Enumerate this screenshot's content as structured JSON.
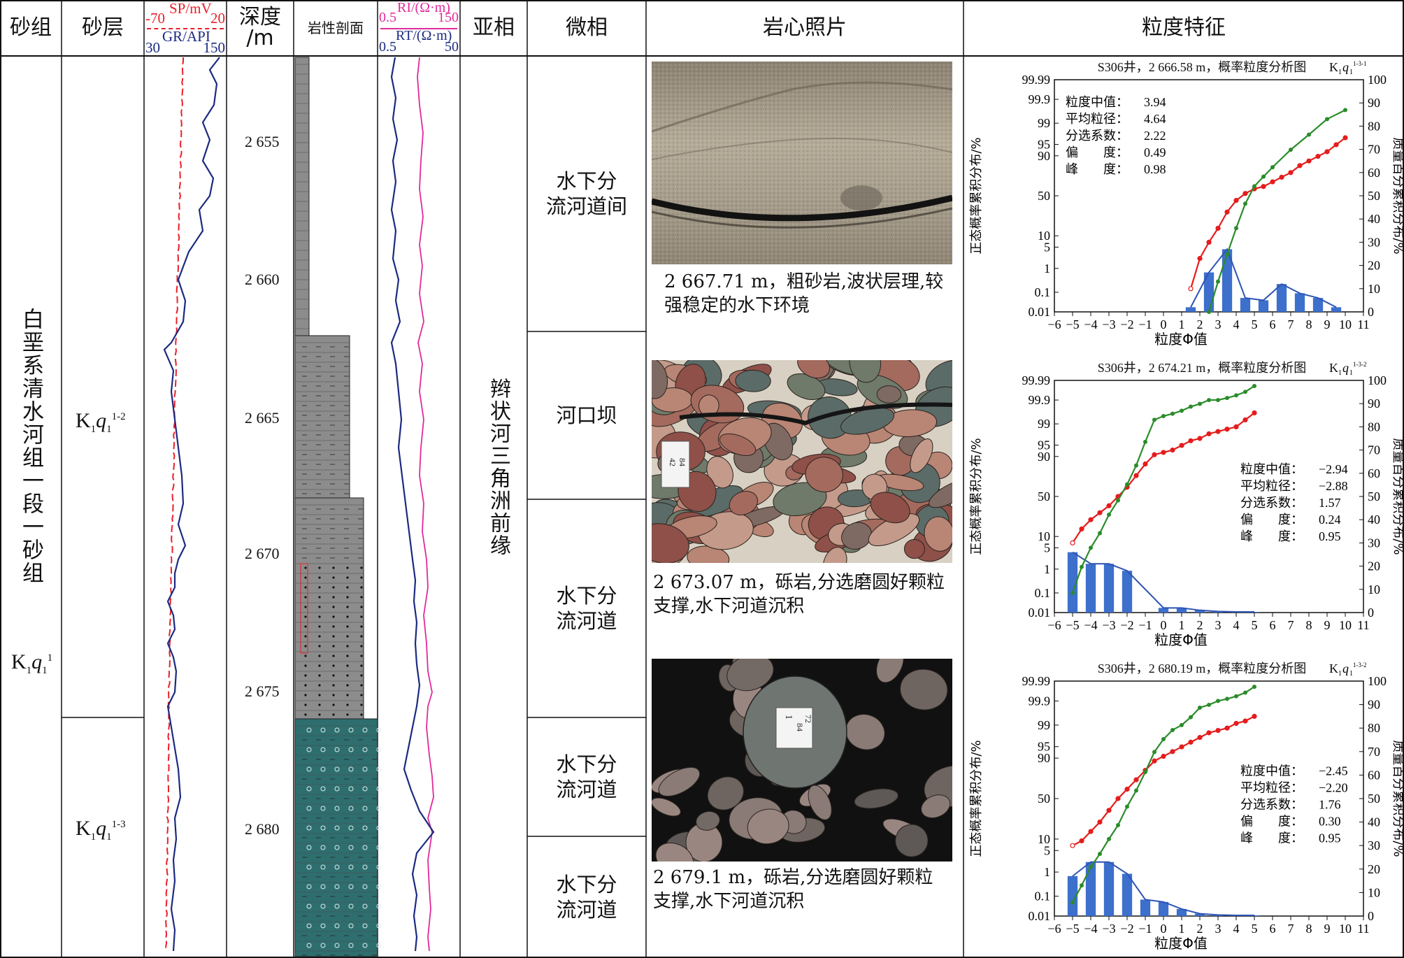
{
  "headers": {
    "sand_group": "砂组",
    "sand_layer": "砂层",
    "sp": "SP/mV",
    "sp_min": "-70",
    "sp_max": "20",
    "gr": "GR/API",
    "gr_min": "30",
    "gr_max": "150",
    "depth_line1": "深度",
    "depth_line2": "/m",
    "lith": "岩性剖面",
    "ri": "RI/(Ω·m)",
    "ri_min": "0.5",
    "ri_max": "150",
    "rt": "RT/(Ω·m)",
    "rt_min": "0.5",
    "rt_max": "50",
    "subfacies": "亚相",
    "microfacies": "微相",
    "core": "岩心照片",
    "grain": "粒度特征"
  },
  "colors": {
    "sp": "#e8202a",
    "gr": "#1c2a80",
    "ri": "#e02a9a",
    "rt": "#1c2a80",
    "green_cum": "#2a8c2a",
    "red_cum": "#e51c1c",
    "bars": "#3d6fcc",
    "lith_gray": "#8c8c8c",
    "lith_teal": "#2e6e6e"
  },
  "sand_group_text": "白垩系清水河组一段一砂组",
  "sand_group_code": {
    "base": "K",
    "sub1": "1",
    "ital": "q",
    "sub2": "1",
    "sup": "1"
  },
  "sand_layers": [
    {
      "base": "K",
      "sub1": "1",
      "ital": "q",
      "sub2": "1",
      "sup": "1-2"
    },
    {
      "base": "K",
      "sub1": "1",
      "ital": "q",
      "sub2": "1",
      "sup": "1-3"
    }
  ],
  "depth_labels": [
    "2 655",
    "2 660",
    "2 665",
    "2 670",
    "2 675",
    "2 680"
  ],
  "subfacies_text": "辫状河三角洲前缘",
  "microfacies": [
    "水下分\n流河道间",
    "河口坝",
    "水下分\n流河道",
    "水下分\n流河道",
    "水下分\n流河道"
  ],
  "core_captions": [
    "2 667.71 m，粗砂岩,波状层理,较强稳定的水下环境",
    "2 673.07 m，砾岩,分选磨圆好颗粒支撑,水下河道沉积",
    "2 679.1 m，砾岩,分选磨圆好颗粒支撑,水下河道沉积"
  ],
  "photo_labels": [
    "42",
    "84",
    "72",
    "84",
    "1"
  ],
  "chart_data": [
    {
      "type": "line",
      "title": "S306井，2 666.58 m，概率粒度分析图",
      "title_suffix": {
        "base": "K",
        "sub1": "1",
        "ital": "q",
        "sub2": "1",
        "sup": "1-3-1"
      },
      "xlabel": "粒度Φ值",
      "ylabel_left": "正态概率累积分布/%",
      "ylabel_right": "质量百分累积分布/%",
      "x_ticks": [
        -6,
        -5,
        -4,
        -3,
        -2,
        -1,
        0,
        1,
        2,
        3,
        4,
        5,
        6,
        7,
        8,
        9,
        10,
        11
      ],
      "y_left_ticks": [
        "99.99",
        "99.9",
        "99",
        "95",
        "90",
        "50",
        "10",
        "5",
        "1",
        "0.1",
        "0.01"
      ],
      "y_left_values": [
        99.99,
        99.9,
        99,
        95,
        90,
        50,
        10,
        5,
        1,
        0.1,
        0.01
      ],
      "y_right_ticks": [
        0,
        10,
        20,
        30,
        40,
        50,
        60,
        70,
        80,
        90,
        100
      ],
      "stats": [
        [
          "粒度中值：",
          "3.94"
        ],
        [
          "平均粒径：",
          "4.64"
        ],
        [
          "分选系数：",
          "2.22"
        ],
        [
          "偏　　度：",
          "0.49"
        ],
        [
          "峰　　度：",
          "0.98"
        ]
      ],
      "stats_pos": "top-left",
      "green_prob_x": [
        2.5,
        3,
        3.5,
        4,
        4.5,
        5,
        5.5,
        6,
        7,
        8,
        9,
        10
      ],
      "green_prob_y": [
        0.01,
        0.3,
        3,
        15,
        40,
        62,
        73,
        82,
        93,
        97.5,
        99.3,
        99.7
      ],
      "red_cum_x": [
        1.5,
        2,
        2.5,
        3,
        3.5,
        4,
        4.5,
        5,
        5.5,
        6,
        6.5,
        7,
        7.5,
        8,
        8.5,
        9,
        9.5,
        10
      ],
      "red_cum_y": [
        10,
        23,
        30,
        36,
        43,
        48,
        51,
        53,
        54,
        56,
        58,
        60,
        63,
        65,
        67,
        69,
        72,
        75
      ],
      "bars_x": [
        1.5,
        2.5,
        3.5,
        4.5,
        5.5,
        6.5,
        7.5,
        8.5,
        9.5
      ],
      "bars_y": [
        2,
        17,
        27,
        6,
        5,
        12,
        8,
        6,
        2
      ],
      "series": [
        {
          "name": "正态概率累积分布"
        },
        {
          "name": "质量百分累积分布"
        }
      ]
    },
    {
      "type": "line",
      "title": "S306井，2 674.21 m，概率粒度分析图",
      "title_suffix": {
        "base": "K",
        "sub1": "1",
        "ital": "q",
        "sub2": "1",
        "sup": "1-3-2"
      },
      "xlabel": "粒度Φ值",
      "ylabel_left": "正态概率累积分布/%",
      "ylabel_right": "质量百分累积分布/%",
      "x_ticks": [
        -6,
        -5,
        -4,
        -3,
        -2,
        -1,
        0,
        1,
        2,
        3,
        4,
        5,
        6,
        7,
        8,
        9,
        10,
        11
      ],
      "y_left_ticks": [
        "99.99",
        "99.9",
        "99",
        "95",
        "90",
        "50",
        "10",
        "5",
        "1",
        "0.1",
        "0.01"
      ],
      "y_left_values": [
        99.99,
        99.9,
        99,
        95,
        90,
        50,
        10,
        5,
        1,
        0.1,
        0.01
      ],
      "y_right_ticks": [
        0,
        10,
        20,
        30,
        40,
        50,
        60,
        70,
        80,
        90,
        100
      ],
      "stats": [
        [
          "粒度中值：",
          "−2.94"
        ],
        [
          "平均粒径：",
          "−2.88"
        ],
        [
          "分选系数：",
          "1.57"
        ],
        [
          "偏　　度：",
          "0.24"
        ],
        [
          "峰　　度：",
          "0.95"
        ]
      ],
      "stats_pos": "right",
      "green_prob_x": [
        -5,
        -4.5,
        -4,
        -3.5,
        -3,
        -2.5,
        -2,
        -1.5,
        -1,
        -0.5,
        0,
        0.5,
        1,
        1.5,
        2,
        2.5,
        3,
        3.5,
        4,
        4.5,
        5
      ],
      "green_prob_y": [
        0.1,
        1.2,
        5,
        12,
        28,
        45,
        65,
        84,
        96,
        99.3,
        99.5,
        99.6,
        99.7,
        99.8,
        99.85,
        99.9,
        99.9,
        99.92,
        99.94,
        99.96,
        99.98
      ],
      "red_cum_x": [
        -5,
        -4.5,
        -4,
        -3.5,
        -3,
        -2.5,
        -2,
        -1.5,
        -1,
        -0.5,
        0,
        0.5,
        1,
        1.5,
        2,
        2.5,
        3,
        3.5,
        4,
        4.5,
        5
      ],
      "red_cum_y": [
        30,
        36,
        40,
        43,
        46,
        50,
        54,
        59,
        64,
        68,
        69,
        70,
        72,
        74,
        75,
        77,
        78,
        79,
        80,
        83,
        86
      ],
      "bars_x": [
        -5,
        -4,
        -3,
        -2,
        0,
        1,
        2,
        3,
        4,
        5
      ],
      "bars_y": [
        26,
        21,
        21,
        18,
        2,
        2,
        1,
        0.5,
        0.3,
        0.3
      ],
      "series": [
        {
          "name": "正态概率累积分布"
        },
        {
          "name": "质量百分累积分布"
        }
      ]
    },
    {
      "type": "line",
      "title": "S306井，2 680.19 m，概率粒度分析图",
      "title_suffix": {
        "base": "K",
        "sub1": "1",
        "ital": "q",
        "sub2": "1",
        "sup": "1-3-2"
      },
      "xlabel": "粒度Φ值",
      "ylabel_left": "正态概率累积分布/%",
      "ylabel_right": "质量百分累积分布/%",
      "x_ticks": [
        -6,
        -5,
        -4,
        -3,
        -2,
        -1,
        0,
        1,
        2,
        3,
        4,
        5,
        6,
        7,
        8,
        9,
        10,
        11
      ],
      "y_left_ticks": [
        "99.99",
        "99.9",
        "99",
        "95",
        "90",
        "50",
        "10",
        "5",
        "1",
        "0.1",
        "0.01"
      ],
      "y_left_values": [
        99.99,
        99.9,
        99,
        95,
        90,
        50,
        10,
        5,
        1,
        0.1,
        0.01
      ],
      "y_right_ticks": [
        0,
        10,
        20,
        30,
        40,
        50,
        60,
        70,
        80,
        90,
        100
      ],
      "stats": [
        [
          "粒度中值：",
          "−2.45"
        ],
        [
          "平均粒径：",
          "−2.20"
        ],
        [
          "分选系数：",
          "1.76"
        ],
        [
          "偏　　度：",
          "0.30"
        ],
        [
          "峰　　度：",
          "0.95"
        ]
      ],
      "stats_pos": "right",
      "green_prob_x": [
        -5,
        -4.5,
        -4,
        -3.5,
        -3,
        -2.5,
        -2,
        -1.5,
        -1,
        -0.5,
        0,
        0.5,
        1,
        1.5,
        2,
        2.5,
        3,
        3.5,
        4,
        4.5,
        5
      ],
      "green_prob_y": [
        0.05,
        0.3,
        1.5,
        4,
        10,
        20,
        40,
        60,
        80,
        93,
        97,
        98.5,
        99,
        99.5,
        99.8,
        99.85,
        99.9,
        99.92,
        99.94,
        99.96,
        99.98
      ],
      "red_cum_x": [
        -5,
        -4.5,
        -4,
        -3.5,
        -3,
        -2.5,
        -2,
        -1.5,
        -1,
        -0.5,
        0,
        0.5,
        1,
        1.5,
        2,
        2.5,
        3,
        3.5,
        4,
        4.5,
        5
      ],
      "red_cum_y": [
        30,
        32,
        36,
        40,
        45,
        50,
        54,
        58,
        62,
        66,
        68,
        70,
        72,
        74,
        76,
        78,
        79,
        80,
        82,
        83,
        85
      ],
      "bars_x": [
        -5,
        -4,
        -3,
        -2,
        -1,
        0,
        1,
        2,
        3,
        4,
        5
      ],
      "bars_y": [
        17,
        23,
        23,
        18,
        7,
        6,
        3,
        1,
        0.5,
        0.3,
        0.3
      ],
      "series": [
        {
          "name": "正态概率累积分布"
        },
        {
          "name": "质量百分累积分布"
        }
      ]
    }
  ]
}
